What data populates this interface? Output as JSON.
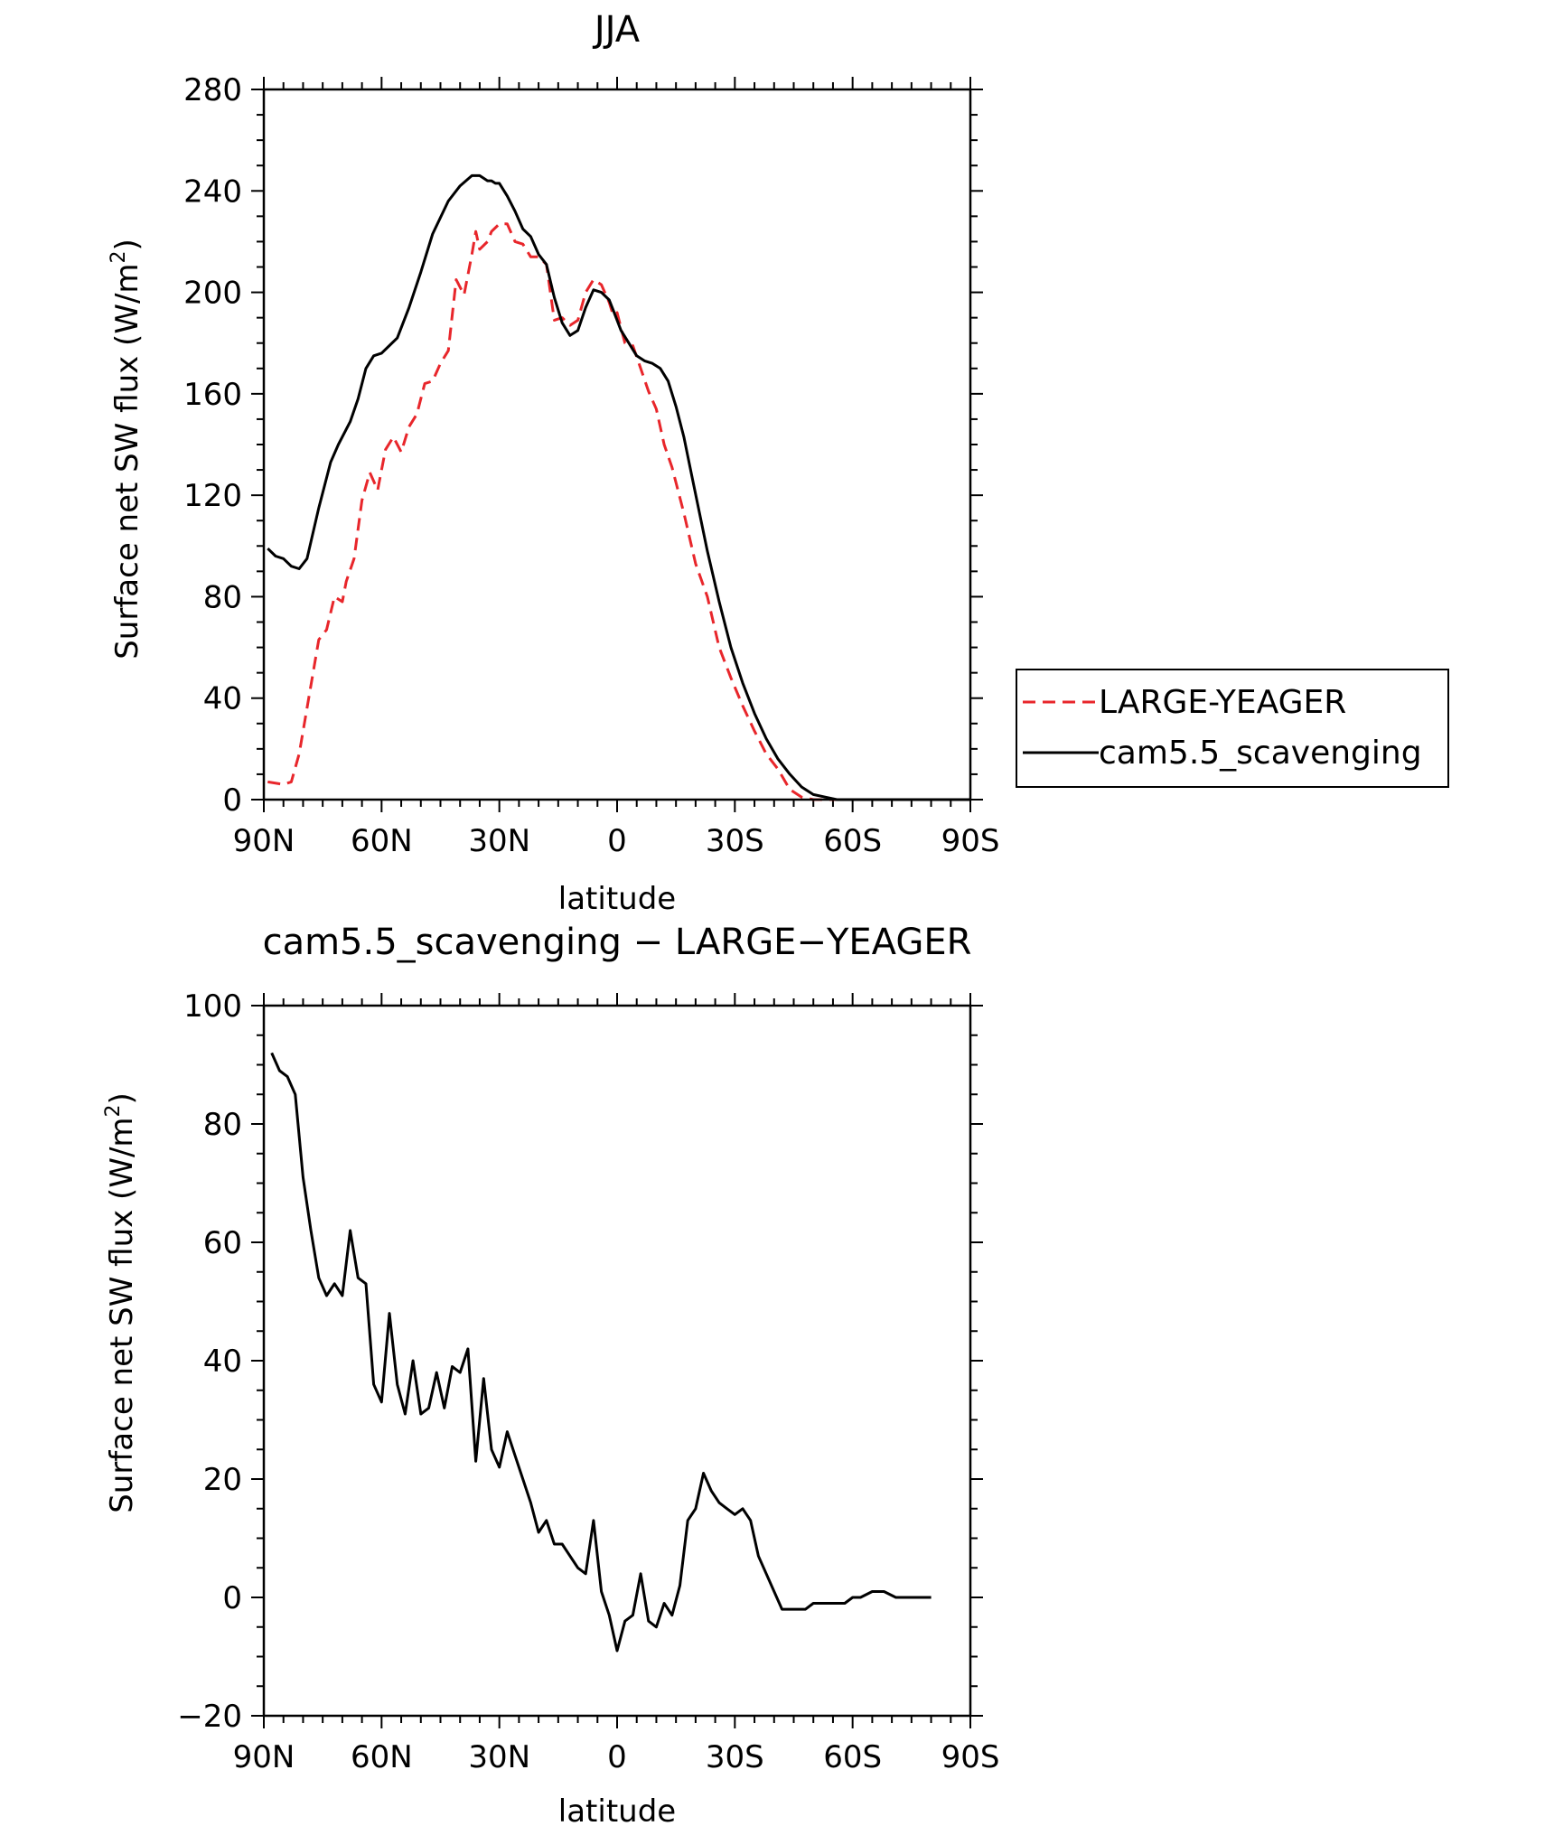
{
  "chart_data": [
    {
      "type": "line",
      "title": "JJA",
      "xlabel": "latitude",
      "ylabel": "Surface net SW flux (W/m",
      "ylabel_superscript": "2",
      "ylabel_suffix": ")",
      "xlim": [
        90,
        -90
      ],
      "ylim": [
        0,
        280
      ],
      "x_ticks": [
        90,
        60,
        30,
        0,
        -30,
        -60,
        -90
      ],
      "x_tick_labels": [
        "90N",
        "60N",
        "30N",
        "0",
        "30S",
        "60S",
        "90S"
      ],
      "y_ticks": [
        0,
        40,
        80,
        120,
        160,
        200,
        240,
        280
      ],
      "y_tick_labels": [
        "0",
        "40",
        "80",
        "120",
        "160",
        "200",
        "240",
        "280"
      ],
      "grid": false,
      "legend_position": "right",
      "series": [
        {
          "name": "LARGE-YEAGER",
          "color": "#e8262b",
          "dash": "dashed",
          "x": [
            89,
            85,
            83,
            81,
            78,
            76,
            74,
            72,
            70,
            69,
            67,
            65,
            63,
            61,
            60,
            59,
            57,
            55,
            53,
            51,
            49,
            47,
            45,
            43,
            41,
            39,
            37,
            36,
            35,
            33,
            32,
            30,
            28,
            26,
            24,
            22,
            20,
            18,
            16,
            14,
            12,
            10,
            8,
            6,
            4,
            2,
            1,
            0,
            -1,
            -2,
            -4,
            -6,
            -8,
            -10,
            -12,
            -14,
            -17,
            -20,
            -23,
            -26,
            -29,
            -32,
            -35,
            -38,
            -41,
            -44,
            -47,
            -50,
            -53,
            -56,
            -59,
            -62,
            -65,
            -68,
            -71,
            -75,
            -80,
            -85,
            -90
          ],
          "y": [
            7,
            6,
            7,
            18,
            45,
            63,
            67,
            80,
            78,
            86,
            95,
            118,
            129,
            122,
            130,
            138,
            143,
            137,
            147,
            152,
            164,
            165,
            172,
            177,
            205,
            199,
            215,
            224,
            217,
            220,
            224,
            227,
            227,
            220,
            219,
            214,
            214,
            211,
            189,
            190,
            187,
            189,
            200,
            205,
            203,
            196,
            191,
            192,
            186,
            180,
            179,
            170,
            161,
            154,
            140,
            131,
            113,
            93,
            80,
            60,
            48,
            37,
            27,
            18,
            12,
            4,
            1,
            0,
            0,
            0,
            0,
            0,
            0,
            0,
            0,
            0,
            0,
            0,
            0
          ]
        },
        {
          "name": "cam5.5_scavenging",
          "color": "#000000",
          "dash": "solid",
          "x": [
            89,
            87,
            85,
            83,
            81,
            79,
            76,
            73,
            71,
            68,
            66,
            64,
            62,
            60,
            58,
            56,
            53,
            50,
            47,
            43,
            40,
            37,
            35,
            34,
            33,
            32,
            31,
            30,
            28,
            26,
            24,
            22,
            20,
            18,
            16,
            14,
            12,
            10,
            8,
            6,
            4,
            2,
            1,
            0,
            -1,
            -3,
            -5,
            -7,
            -9,
            -11,
            -13,
            -15,
            -17,
            -19,
            -21,
            -23,
            -26,
            -29,
            -32,
            -35,
            -38,
            -41,
            -44,
            -47,
            -50,
            -53,
            -56,
            -59,
            -62,
            -65,
            -68,
            -71,
            -75,
            -80,
            -85,
            -90
          ],
          "y": [
            99,
            96,
            95,
            92,
            91,
            95,
            115,
            133,
            140,
            149,
            158,
            170,
            175,
            176,
            179,
            182,
            194,
            208,
            223,
            236,
            242,
            246,
            246,
            245,
            244,
            244,
            243,
            243,
            238,
            232,
            225,
            222,
            215,
            211,
            198,
            188,
            183,
            185,
            194,
            201,
            200,
            197,
            193,
            189,
            185,
            180,
            175,
            173,
            172,
            170,
            165,
            155,
            143,
            128,
            113,
            98,
            78,
            60,
            46,
            34,
            24,
            16,
            10,
            5,
            2,
            1,
            0,
            0,
            0,
            0,
            0,
            0,
            0,
            0,
            0,
            0
          ]
        }
      ]
    },
    {
      "type": "line",
      "title": "cam5.5_scavenging − LARGE−YEAGER",
      "xlabel": "latitude",
      "ylabel": "Surface net SW flux (W/m",
      "ylabel_superscript": "2",
      "ylabel_suffix": ")",
      "xlim": [
        90,
        -90
      ],
      "ylim": [
        -20,
        100
      ],
      "x_ticks": [
        90,
        60,
        30,
        0,
        -30,
        -60,
        -90
      ],
      "x_tick_labels": [
        "90N",
        "60N",
        "30N",
        "0",
        "30S",
        "60S",
        "90S"
      ],
      "y_ticks": [
        -20,
        0,
        20,
        40,
        60,
        80,
        100
      ],
      "y_tick_labels": [
        "−20",
        "0",
        "20",
        "40",
        "60",
        "80",
        "100"
      ],
      "grid": false,
      "series": [
        {
          "color": "#000000",
          "x": [
            88,
            86,
            84,
            82,
            80,
            78,
            76,
            74,
            72,
            70,
            68,
            66,
            64,
            62,
            60,
            58,
            56,
            54,
            52,
            50,
            48,
            46,
            44,
            42,
            40,
            38,
            36,
            34,
            32,
            30,
            28,
            26,
            24,
            22,
            20,
            18,
            16,
            14,
            12,
            10,
            8,
            6,
            4,
            2,
            0,
            -2,
            -4,
            -6,
            -8,
            -10,
            -12,
            -14,
            -16,
            -18,
            -20,
            -22,
            -24,
            -26,
            -28,
            -30,
            -32,
            -34,
            -36,
            -38,
            -40,
            -42,
            -44,
            -46,
            -48,
            -50,
            -52,
            -54,
            -56,
            -58,
            -60,
            -62,
            -65,
            -68,
            -71,
            -74,
            -77,
            -80
          ],
          "y": [
            92,
            89,
            88,
            85,
            71,
            62,
            54,
            51,
            53,
            51,
            62,
            54,
            53,
            36,
            33,
            48,
            36,
            31,
            40,
            31,
            32,
            38,
            32,
            39,
            38,
            42,
            23,
            37,
            25,
            22,
            28,
            24,
            20,
            16,
            11,
            13,
            9,
            9,
            7,
            5,
            4,
            13,
            1,
            -3,
            -9,
            -4,
            -3,
            4,
            -4,
            -5,
            -1,
            -3,
            2,
            13,
            15,
            21,
            18,
            16,
            15,
            14,
            15,
            13,
            7,
            4,
            1,
            -2,
            -2,
            -2,
            -2,
            -1,
            -1,
            -1,
            -1,
            -1,
            0,
            0,
            1,
            1,
            0,
            0,
            0,
            0
          ]
        }
      ]
    }
  ]
}
